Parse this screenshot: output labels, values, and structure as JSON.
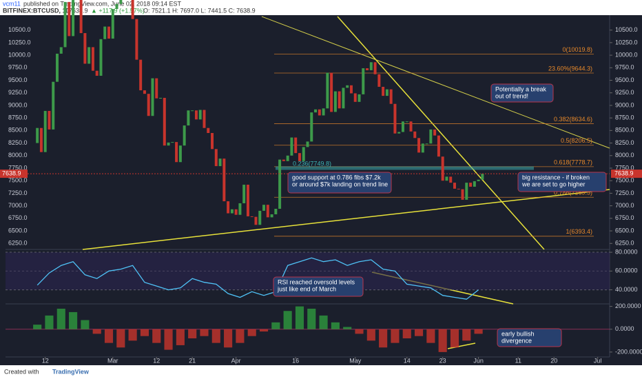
{
  "header": {
    "author": "vcm11",
    "published": "published on TradingView.com, June 02, 2018 09:14 EST",
    "symbol": "BITFINEX:BTCUSD, 1D",
    "price": "7638.9",
    "change": "▲ +117.9 (+1.57%)",
    "ohlc": "O: 7521.1 H: 7697.0 L: 7441.5 C: 7638.9"
  },
  "chart_data": [
    {
      "type": "candlestick",
      "x": [
        9,
        10,
        11,
        12,
        13,
        14,
        15,
        16,
        17,
        18,
        19,
        20,
        21,
        22,
        23,
        24,
        25,
        26,
        27,
        28,
        29,
        30,
        31,
        32,
        33,
        34,
        35,
        36,
        37,
        38,
        39,
        40,
        41,
        42,
        43,
        44,
        45,
        46,
        47,
        48,
        49,
        50,
        51,
        52,
        53,
        54,
        55,
        56,
        57,
        58,
        59,
        60,
        61,
        62,
        63,
        64,
        65,
        66,
        67,
        68,
        69,
        70,
        71,
        72,
        73,
        74,
        75,
        76,
        77,
        78,
        79,
        80,
        81,
        82,
        83,
        84,
        85,
        86,
        87,
        88,
        89,
        90,
        91,
        92,
        93,
        94,
        95,
        96,
        97,
        98,
        99,
        100,
        101,
        102,
        103,
        104,
        105,
        106,
        107,
        108,
        109,
        110,
        111,
        112,
        113,
        114,
        115,
        116,
        117,
        118,
        119,
        120,
        121,
        122
      ],
      "closes": [
        8250,
        8550,
        8070,
        8890,
        8520,
        9470,
        10030,
        10160,
        11060,
        10380,
        11150,
        11220,
        10440,
        9830,
        10160,
        9690,
        9590,
        10320,
        10570,
        10330,
        10920,
        11020,
        11440,
        11500,
        11450,
        10720,
        9910,
        9300,
        9230,
        8790,
        9540,
        9140,
        9150,
        8200,
        8260,
        8270,
        7870,
        8200,
        8600,
        8900,
        8900,
        8720,
        8910,
        8550,
        8450,
        8130,
        7790,
        7940,
        7090,
        6850,
        6930,
        6820,
        7050,
        7420,
        6790,
        6780,
        6620,
        6900,
        7020,
        6770,
        6830,
        6940,
        7920,
        7890,
        8000,
        8360,
        8050,
        7890,
        8170,
        8280,
        8860,
        8920,
        8800,
        8940,
        9650,
        8870,
        9280,
        8940,
        9350,
        9400,
        9240,
        9070,
        9220,
        9740,
        9700,
        9860,
        9620,
        9370,
        9190,
        9320,
        9030,
        8440,
        8470,
        8680,
        8680,
        8480,
        8350,
        8060,
        8240,
        8240,
        8520,
        8400,
        7980,
        7500,
        7580,
        7460,
        7340,
        7330,
        7120,
        7460,
        7380,
        7490,
        7520,
        7638.9
      ],
      "xlim": [
        2,
        154
      ],
      "ylim": [
        6130,
        10770
      ],
      "xticks": [
        {
          "value": 12,
          "label": "12"
        },
        {
          "value": 29,
          "label": "Mar"
        },
        {
          "value": 40,
          "label": "12"
        },
        {
          "value": 49,
          "label": "21"
        },
        {
          "value": 60,
          "label": "Apr"
        },
        {
          "value": 75,
          "label": "16"
        },
        {
          "value": 90,
          "label": "May"
        },
        {
          "value": 103,
          "label": "14"
        },
        {
          "value": 112,
          "label": "23"
        },
        {
          "value": 121,
          "label": "Jun"
        },
        {
          "value": 131,
          "label": "11"
        },
        {
          "value": 140,
          "label": "20"
        },
        {
          "value": 151,
          "label": "Jul"
        }
      ],
      "yticks": [
        {
          "value": 6250,
          "label": "6250.0"
        },
        {
          "value": 6500,
          "label": "6500.0"
        },
        {
          "value": 6750,
          "label": "6750.0"
        },
        {
          "value": 7000,
          "label": "7000.0"
        },
        {
          "value": 7250,
          "label": "7250.0"
        },
        {
          "value": 7500,
          "label": "7500.0"
        },
        {
          "value": 7750,
          "label": "7750.0"
        },
        {
          "value": 8000,
          "label": "8000.0"
        },
        {
          "value": 8250,
          "label": "8250.0"
        },
        {
          "value": 8500,
          "label": "8500.0"
        },
        {
          "value": 8750,
          "label": "8750.0"
        },
        {
          "value": 9000,
          "label": "9000.0"
        },
        {
          "value": 9250,
          "label": "9250.0"
        },
        {
          "value": 9500,
          "label": "9500.0"
        },
        {
          "value": 9750,
          "label": "9750.0"
        },
        {
          "value": 10000,
          "label": "10000.0"
        },
        {
          "value": 10250,
          "label": "10250.0"
        },
        {
          "value": 10500,
          "label": "10500.0"
        }
      ],
      "up_color": "#3d9a4a",
      "down_color": "#c8342c",
      "fibs": {
        "values": [
          10019.8,
          9644.3,
          8634.6,
          8206.5,
          7778.7,
          7169.5,
          6393.4
        ],
        "value_labels": [
          "0(10019.8)",
          "23.60%(9644.3)",
          "0.382(8634.6)",
          "0.5(8206.5)",
          "0.618(7778.7)",
          "0.786(7169.5)",
          "1(6393.4)"
        ],
        "color": "#e8892a"
      },
      "fib2": {
        "values": [
          7749.8
        ],
        "value_labels": [
          "0.236(7749.8)"
        ],
        "color": "#3bb3b3"
      },
      "annotations": [
        [
          "Potentially a break",
          "out of trend!"
        ],
        [
          "good support at 0.786 fibs $7.2k",
          "or around $7k landing on trend line"
        ],
        [
          "big resistance - if broken",
          "we are set to go higher"
        ]
      ]
    },
    {
      "type": "line",
      "x": [
        10,
        13,
        16,
        19,
        22,
        25,
        28,
        31,
        34,
        37,
        40,
        43,
        46,
        49,
        52,
        55,
        58,
        61,
        64,
        67,
        70,
        73,
        76,
        79,
        82,
        85,
        88,
        91,
        94,
        97,
        100,
        103,
        106,
        109,
        112,
        115,
        118,
        121
      ],
      "values": [
        45,
        58,
        66,
        70,
        56,
        52,
        60,
        62,
        66,
        48,
        44,
        40,
        42,
        52,
        48,
        46,
        36,
        32,
        38,
        34,
        38,
        66,
        70,
        74,
        70,
        72,
        66,
        70,
        72,
        62,
        60,
        46,
        44,
        42,
        34,
        32,
        30,
        40
      ],
      "color": "#4fc3f7",
      "xlim": [
        2,
        154
      ],
      "ylim": [
        25,
        83
      ],
      "yticks": [
        {
          "value": 40,
          "label": "40.0000"
        },
        {
          "value": 60,
          "label": "60.0000"
        },
        {
          "value": 80,
          "label": "80.0000"
        }
      ],
      "annotations": [
        [
          "RSI reached oversold levels",
          "just like end of March"
        ]
      ]
    },
    {
      "type": "bar",
      "x": [
        10,
        13,
        16,
        19,
        22,
        25,
        28,
        31,
        34,
        37,
        40,
        43,
        46,
        49,
        52,
        55,
        58,
        61,
        64,
        67,
        70,
        73,
        76,
        79,
        82,
        85,
        88,
        91,
        94,
        97,
        100,
        103,
        106,
        109,
        112,
        115,
        118,
        121
      ],
      "values": [
        40,
        120,
        180,
        150,
        80,
        -40,
        -120,
        -160,
        -100,
        -60,
        -120,
        -180,
        -140,
        -80,
        -60,
        -120,
        -160,
        -120,
        -60,
        -20,
        60,
        160,
        200,
        180,
        120,
        60,
        20,
        -40,
        -100,
        -160,
        -120,
        -80,
        -60,
        -120,
        -200,
        -160,
        -100,
        -40
      ],
      "xlim": [
        2,
        154
      ],
      "ylim": [
        -243,
        222
      ],
      "up_color": "#2e9a3e",
      "down_color": "#c8342c",
      "yticks": [
        {
          "value": -200,
          "label": "-200.0000"
        },
        {
          "value": 0,
          "label": "0.0000"
        },
        {
          "value": 200,
          "label": "200.0000"
        }
      ],
      "annotations": [
        [
          "early bullish",
          "divergence"
        ]
      ]
    }
  ],
  "footer": {
    "created": "Created with",
    "brand": "TradingView"
  }
}
